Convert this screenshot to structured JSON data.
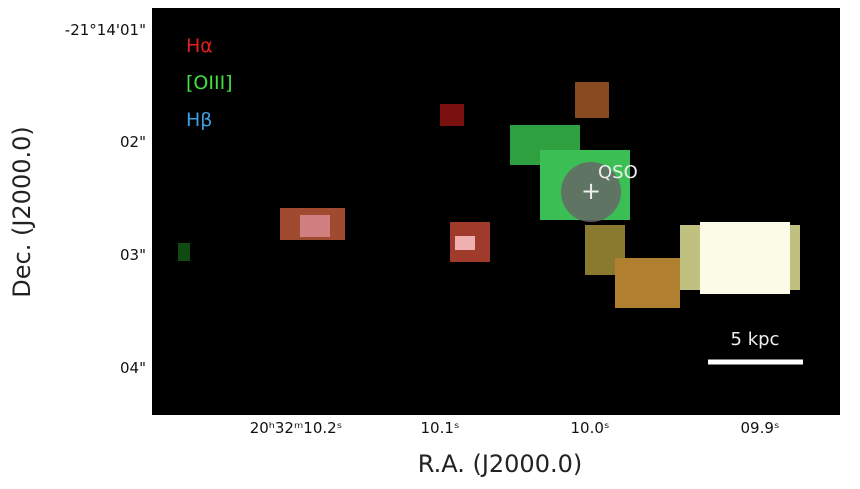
{
  "figure": {
    "x_axis": {
      "label": "R.A. (J2000.0)",
      "ticks": [
        "20ʰ32ᵐ10.2ˢ",
        "10.1ˢ",
        "10.0ˢ",
        "09.9ˢ"
      ]
    },
    "y_axis": {
      "label": "Dec. (J2000.0)",
      "ticks": [
        "-21°14'01\"",
        "02\"",
        "03\"",
        "04\""
      ]
    },
    "legend": [
      {
        "label": "Hα",
        "color": "#e02020"
      },
      {
        "label": "[OIII]",
        "color": "#40e040"
      },
      {
        "label": "Hβ",
        "color": "#3aa0e0"
      }
    ],
    "annotations": {
      "source": "QSO",
      "marker": "+",
      "scale_bar": "5 kpc"
    }
  }
}
